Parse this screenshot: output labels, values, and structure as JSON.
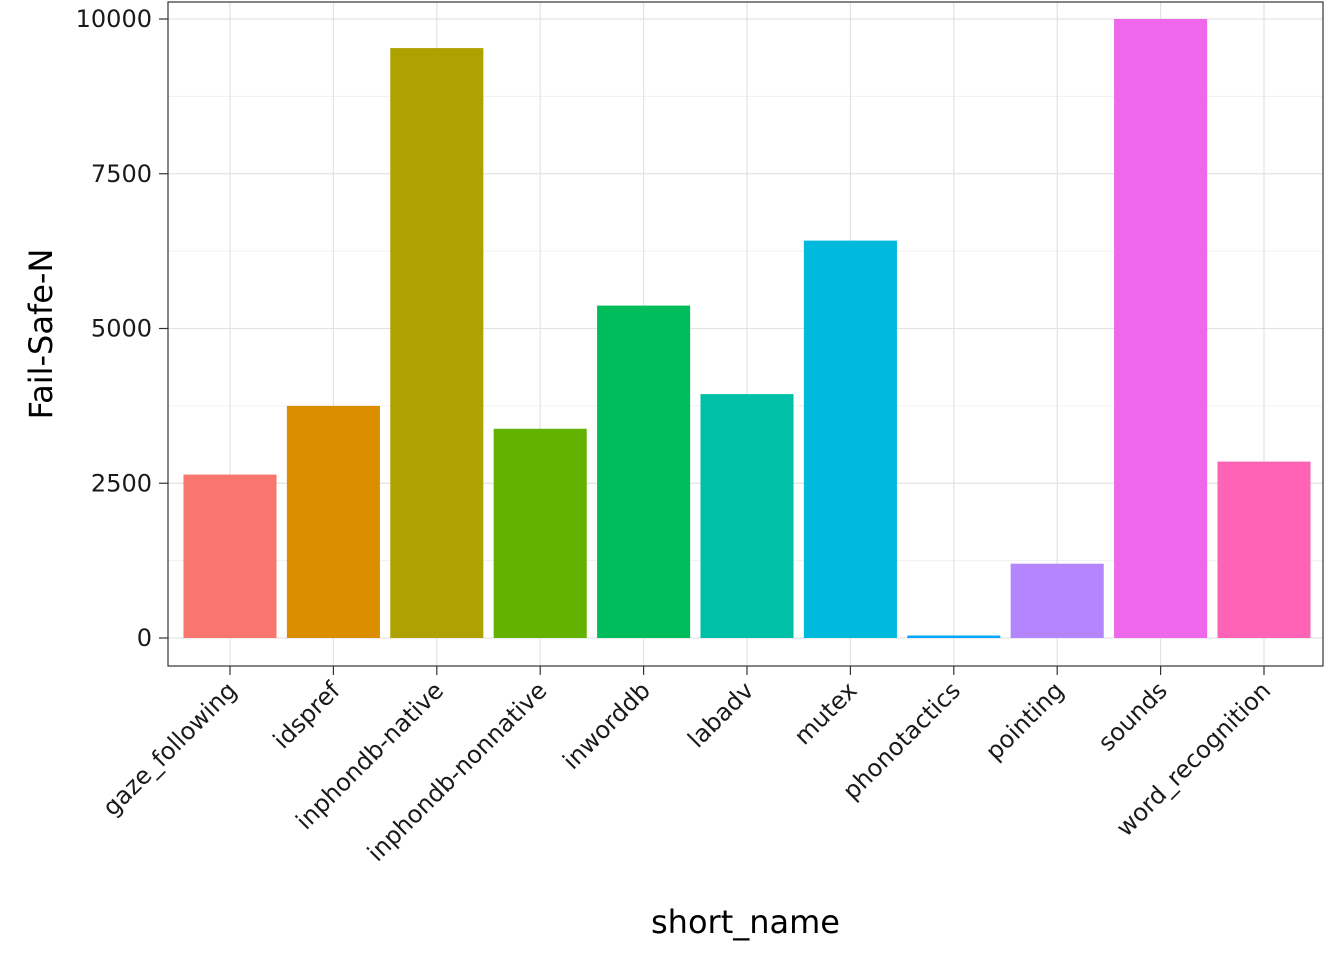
{
  "chart_data": {
    "type": "bar",
    "xlabel": "short_name",
    "ylabel": "Fail-Safe-N",
    "ylim": [
      -450,
      10000
    ],
    "yticks": [
      0,
      2500,
      5000,
      7500,
      10000
    ],
    "grid": true,
    "legend": "none",
    "categories": [
      "gaze_following",
      "idspref",
      "inphondb-native",
      "inphondb-nonnative",
      "inworddb",
      "labadv",
      "mutex",
      "phonotactics",
      "pointing",
      "sounds",
      "word_recognition"
    ],
    "values": [
      2640,
      3750,
      9530,
      3380,
      5370,
      3940,
      6420,
      40,
      1200,
      10000,
      2850
    ],
    "colors": [
      "#F8766D",
      "#DB8E00",
      "#AEA200",
      "#64B200",
      "#00BD5C",
      "#00C1A7",
      "#00BADE",
      "#00A6FF",
      "#B385FF",
      "#EF67EB",
      "#FF63B6"
    ]
  }
}
